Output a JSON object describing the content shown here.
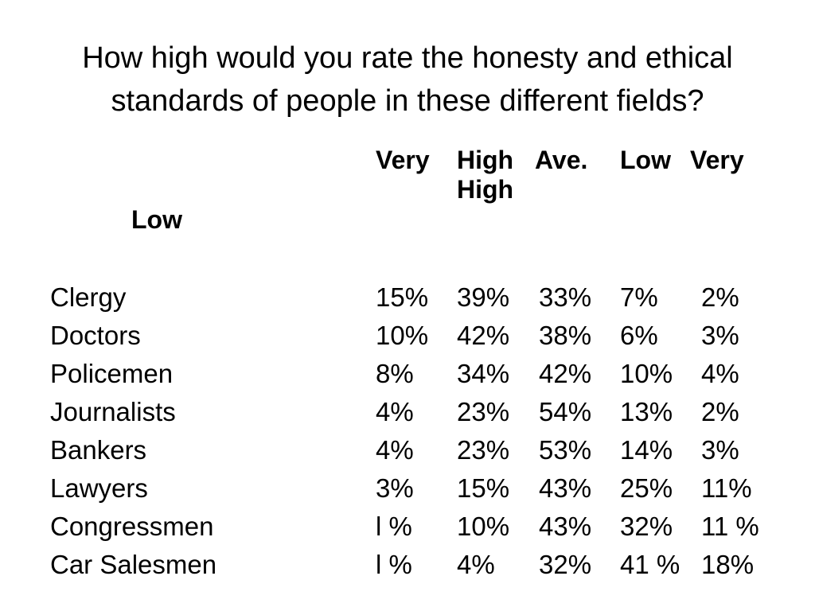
{
  "title_lines": [
    "How high would you rate the honesty and ethical",
    "standards of people in these different fields?"
  ],
  "headers": {
    "very_high_top": "Very",
    "high_line1": "High",
    "high_line2": "High",
    "average": "Ave.",
    "low": "Low",
    "very_low_top": "Very",
    "very_low_bottom": "Low"
  },
  "rows": [
    {
      "label": "Clergy",
      "values": [
        "15%",
        "39%",
        "33%",
        "7%",
        "2%"
      ]
    },
    {
      "label": "Doctors",
      "values": [
        "10%",
        "42%",
        "38%",
        "6%",
        "3%"
      ]
    },
    {
      "label": "Policemen",
      "values": [
        "8%",
        "34%",
        "42%",
        "10%",
        "4%"
      ]
    },
    {
      "label": "Journalists",
      "values": [
        "4%",
        "23%",
        "54%",
        "13%",
        "2%"
      ]
    },
    {
      "label": "Bankers",
      "values": [
        "4%",
        "23%",
        "53%",
        "14%",
        "3%"
      ]
    },
    {
      "label": "Lawyers",
      "values": [
        "3%",
        "15%",
        "43%",
        "25%",
        "11%"
      ]
    },
    {
      "label": "Congressmen",
      "values": [
        "l %",
        "10%",
        "43%",
        "32%",
        "11 %"
      ]
    },
    {
      "label": "Car Salesmen",
      "values": [
        "l %",
        "4%",
        "32%",
        "41 %",
        "18%"
      ]
    }
  ]
}
